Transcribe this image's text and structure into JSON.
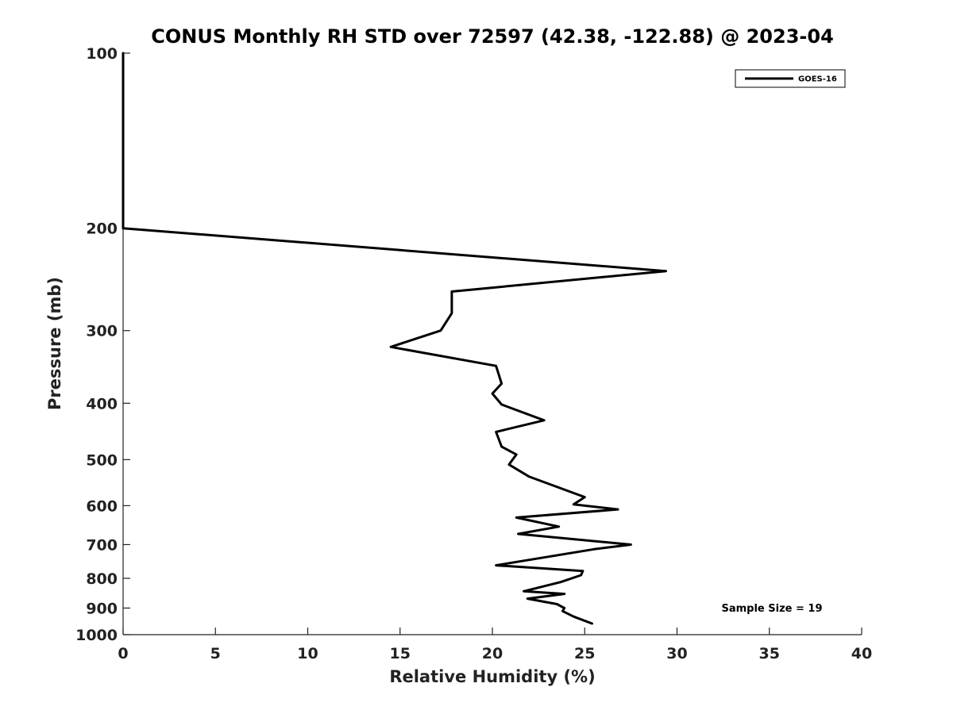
{
  "chart_data": {
    "type": "line",
    "title": "CONUS Monthly RH STD over 72597 (42.38, -122.88) @ 2023-04",
    "xlabel": "Relative Humidity (%)",
    "ylabel": "Pressure (mb)",
    "xlim": [
      0,
      40
    ],
    "ylim": [
      1000,
      100
    ],
    "yscale": "log",
    "y_inverted": true,
    "grid": false,
    "legend_position": "top-right",
    "x_ticks": [
      "0",
      "5",
      "10",
      "15",
      "20",
      "25",
      "30",
      "35",
      "40"
    ],
    "y_ticks": [
      "100",
      "200",
      "300",
      "400",
      "500",
      "600",
      "700",
      "800",
      "900",
      "1000"
    ],
    "annotation": "Sample Size = 19",
    "series": [
      {
        "name": "GOES-16",
        "color": "#000000",
        "points": [
          {
            "x": 0,
            "y": 100
          },
          {
            "x": 0,
            "y": 150
          },
          {
            "x": 0,
            "y": 200
          },
          {
            "x": 29.4,
            "y": 237
          },
          {
            "x": 17.8,
            "y": 257
          },
          {
            "x": 17.8,
            "y": 280
          },
          {
            "x": 17.2,
            "y": 300
          },
          {
            "x": 14.5,
            "y": 320
          },
          {
            "x": 20.2,
            "y": 345
          },
          {
            "x": 20.5,
            "y": 370
          },
          {
            "x": 20.0,
            "y": 385
          },
          {
            "x": 20.5,
            "y": 402
          },
          {
            "x": 22.8,
            "y": 428
          },
          {
            "x": 20.2,
            "y": 448
          },
          {
            "x": 20.5,
            "y": 475
          },
          {
            "x": 21.3,
            "y": 490
          },
          {
            "x": 20.9,
            "y": 510
          },
          {
            "x": 22.0,
            "y": 535
          },
          {
            "x": 25.0,
            "y": 580
          },
          {
            "x": 24.4,
            "y": 597
          },
          {
            "x": 26.8,
            "y": 609
          },
          {
            "x": 21.3,
            "y": 629
          },
          {
            "x": 23.6,
            "y": 652
          },
          {
            "x": 21.4,
            "y": 671
          },
          {
            "x": 27.5,
            "y": 700
          },
          {
            "x": 25.5,
            "y": 713
          },
          {
            "x": 20.2,
            "y": 760
          },
          {
            "x": 24.9,
            "y": 777
          },
          {
            "x": 24.8,
            "y": 790
          },
          {
            "x": 23.7,
            "y": 812
          },
          {
            "x": 21.7,
            "y": 842
          },
          {
            "x": 23.9,
            "y": 851
          },
          {
            "x": 21.9,
            "y": 867
          },
          {
            "x": 23.5,
            "y": 886
          },
          {
            "x": 23.9,
            "y": 900
          },
          {
            "x": 23.8,
            "y": 911
          },
          {
            "x": 24.4,
            "y": 931
          },
          {
            "x": 25.4,
            "y": 957
          }
        ]
      }
    ]
  }
}
